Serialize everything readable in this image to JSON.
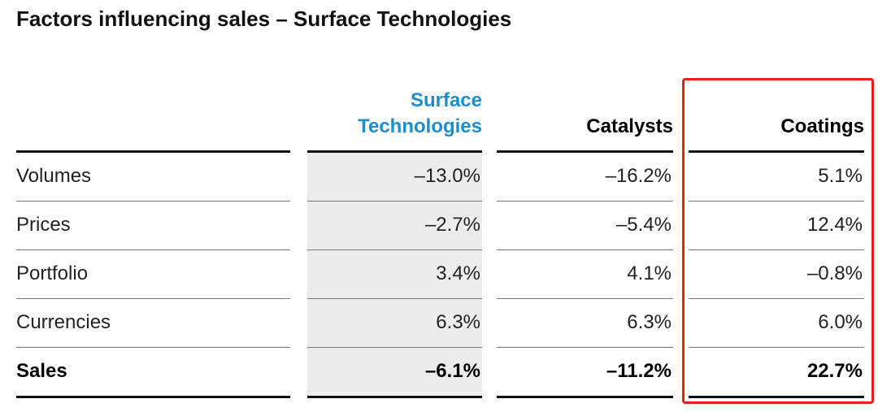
{
  "title": "Factors influencing sales – Surface Technologies",
  "table": {
    "columns": [
      "Surface Technologies",
      "Catalysts",
      "Coatings"
    ],
    "rows": [
      [
        "Volumes",
        "–13.0%",
        "–16.2%",
        "5.1%"
      ],
      [
        "Prices",
        "–2.7%",
        "–5.4%",
        "12.4%"
      ],
      [
        "Portfolio",
        "3.4%",
        "4.1%",
        "–0.8%"
      ],
      [
        "Currencies",
        "6.3%",
        "6.3%",
        "6.0%"
      ],
      [
        "Sales",
        "–6.1%",
        "–11.2%",
        "22.7%"
      ]
    ]
  }
}
